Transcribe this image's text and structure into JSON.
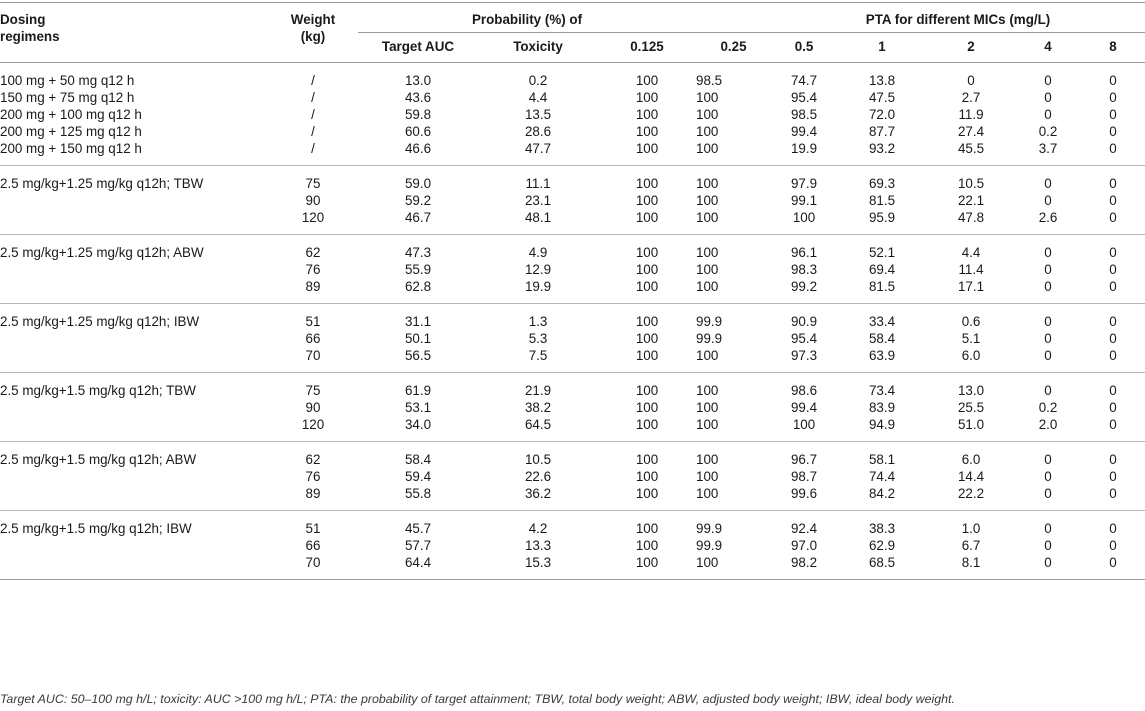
{
  "header": {
    "regimen_line1": "Dosing",
    "regimen_line2": "regimens",
    "weight_line1": "Weight",
    "weight_line2": "(kg)",
    "prob_group": "Probability (%) of",
    "pta_group": "PTA for different MICs (mg/L)",
    "cols": [
      "Target AUC",
      "Toxicity",
      "0.125",
      "0.25",
      "0.5",
      "1",
      "2",
      "4",
      "8"
    ]
  },
  "groups": [
    {
      "rows": [
        [
          "100 mg + 50 mg q12 h",
          "/",
          "13.0",
          "0.2",
          "100",
          "98.5",
          "74.7",
          "13.8",
          "0",
          "0",
          "0"
        ],
        [
          "150 mg + 75 mg q12 h",
          "/",
          "43.6",
          "4.4",
          "100",
          "100",
          "95.4",
          "47.5",
          "2.7",
          "0",
          "0"
        ],
        [
          "200 mg + 100 mg q12 h",
          "/",
          "59.8",
          "13.5",
          "100",
          "100",
          "98.5",
          "72.0",
          "11.9",
          "0",
          "0"
        ],
        [
          "200 mg + 125 mg q12 h",
          "/",
          "60.6",
          "28.6",
          "100",
          "100",
          "99.4",
          "87.7",
          "27.4",
          "0.2",
          "0"
        ],
        [
          "200 mg + 150 mg q12 h",
          "/",
          "46.6",
          "47.7",
          "100",
          "100",
          "19.9",
          "93.2",
          "45.5",
          "3.7",
          "0"
        ]
      ]
    },
    {
      "rows": [
        [
          "2.5 mg/kg+1.25 mg/kg q12h; TBW",
          "75",
          "59.0",
          "11.1",
          "100",
          "100",
          "97.9",
          "69.3",
          "10.5",
          "0",
          "0"
        ],
        [
          "",
          "90",
          "59.2",
          "23.1",
          "100",
          "100",
          "99.1",
          "81.5",
          "22.1",
          "0",
          "0"
        ],
        [
          "",
          "120",
          "46.7",
          "48.1",
          "100",
          "100",
          "100",
          "95.9",
          "47.8",
          "2.6",
          "0"
        ]
      ]
    },
    {
      "rows": [
        [
          "2.5 mg/kg+1.25 mg/kg q12h; ABW",
          "62",
          "47.3",
          "4.9",
          "100",
          "100",
          "96.1",
          "52.1",
          "4.4",
          "0",
          "0"
        ],
        [
          "",
          "76",
          "55.9",
          "12.9",
          "100",
          "100",
          "98.3",
          "69.4",
          "11.4",
          "0",
          "0"
        ],
        [
          "",
          "89",
          "62.8",
          "19.9",
          "100",
          "100",
          "99.2",
          "81.5",
          "17.1",
          "0",
          "0"
        ]
      ]
    },
    {
      "rows": [
        [
          "2.5 mg/kg+1.25 mg/kg q12h; IBW",
          "51",
          "31.1",
          "1.3",
          "100",
          "99.9",
          "90.9",
          "33.4",
          "0.6",
          "0",
          "0"
        ],
        [
          "",
          "66",
          "50.1",
          "5.3",
          "100",
          "99.9",
          "95.4",
          "58.4",
          "5.1",
          "0",
          "0"
        ],
        [
          "",
          "70",
          "56.5",
          "7.5",
          "100",
          "100",
          "97.3",
          "63.9",
          "6.0",
          "0",
          "0"
        ]
      ]
    },
    {
      "rows": [
        [
          "2.5 mg/kg+1.5 mg/kg q12h; TBW",
          "75",
          "61.9",
          "21.9",
          "100",
          "100",
          "98.6",
          "73.4",
          "13.0",
          "0",
          "0"
        ],
        [
          "",
          "90",
          "53.1",
          "38.2",
          "100",
          "100",
          "99.4",
          "83.9",
          "25.5",
          "0.2",
          "0"
        ],
        [
          "",
          "120",
          "34.0",
          "64.5",
          "100",
          "100",
          "100",
          "94.9",
          "51.0",
          "2.0",
          "0"
        ]
      ]
    },
    {
      "rows": [
        [
          "2.5 mg/kg+1.5 mg/kg q12h; ABW",
          "62",
          "58.4",
          "10.5",
          "100",
          "100",
          "96.7",
          "58.1",
          "6.0",
          "0",
          "0"
        ],
        [
          "",
          "76",
          "59.4",
          "22.6",
          "100",
          "100",
          "98.7",
          "74.4",
          "14.4",
          "0",
          "0"
        ],
        [
          "",
          "89",
          "55.8",
          "36.2",
          "100",
          "100",
          "99.6",
          "84.2",
          "22.2",
          "0",
          "0"
        ]
      ]
    },
    {
      "rows": [
        [
          "2.5 mg/kg+1.5 mg/kg q12h; IBW",
          "51",
          "45.7",
          "4.2",
          "100",
          "99.9",
          "92.4",
          "38.3",
          "1.0",
          "0",
          "0"
        ],
        [
          "",
          "66",
          "57.7",
          "13.3",
          "100",
          "99.9",
          "97.0",
          "62.9",
          "6.7",
          "0",
          "0"
        ],
        [
          "",
          "70",
          "64.4",
          "15.3",
          "100",
          "100",
          "98.2",
          "68.5",
          "8.1",
          "0",
          "0"
        ]
      ]
    }
  ],
  "footnote": "Target AUC: 50–100 mg h/L; toxicity: AUC >100 mg h/L; PTA: the probability of target attainment; TBW, total body weight; ABW, adjusted body weight; IBW, ideal body weight."
}
